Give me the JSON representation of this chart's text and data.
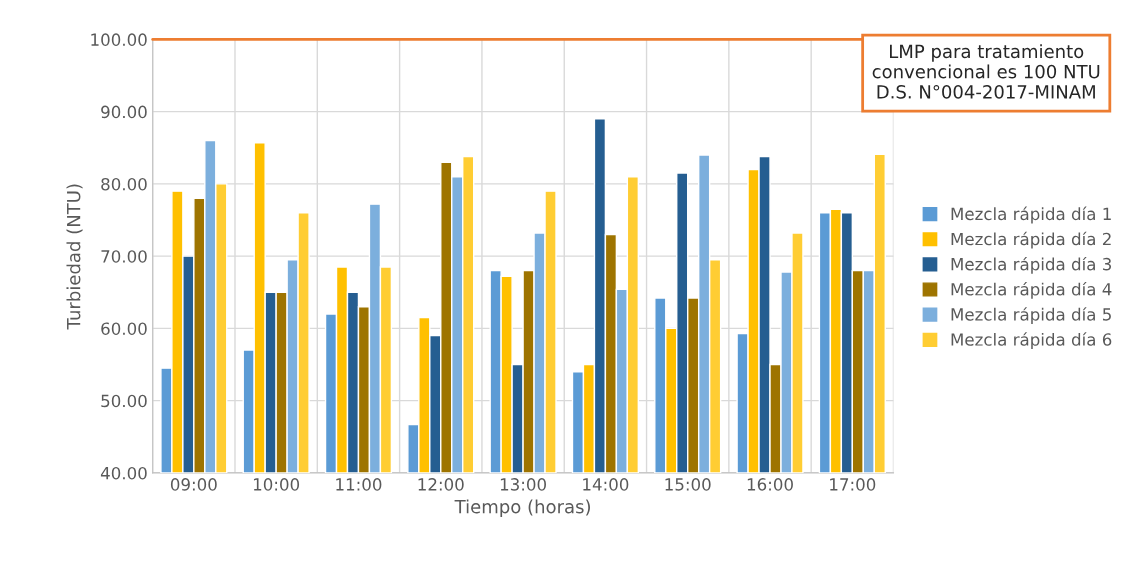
{
  "chart_data": {
    "type": "bar",
    "xlabel": "Tiempo (horas)",
    "ylabel": "Turbiedad (NTU)",
    "categories": [
      "09:00",
      "10:00",
      "11:00",
      "12:00",
      "13:00",
      "14:00",
      "15:00",
      "16:00",
      "17:00"
    ],
    "series": [
      {
        "name": "Mezcla rápida día 1",
        "color": "#5b9bd5",
        "values": [
          54.5,
          57,
          62,
          46.7,
          68,
          54,
          64.2,
          59.3,
          76
        ]
      },
      {
        "name": "Mezcla rápida día 2",
        "color": "#ffc000",
        "values": [
          79,
          85.7,
          68.5,
          61.5,
          67.2,
          55,
          60,
          82,
          76.5
        ]
      },
      {
        "name": "Mezcla rápida día 3",
        "color": "#255e91",
        "values": [
          70,
          65,
          65,
          59,
          55,
          89,
          81.5,
          83.8,
          76
        ]
      },
      {
        "name": "Mezcla rápida día 4",
        "color": "#9e7400",
        "values": [
          78,
          65,
          63,
          83,
          68,
          73,
          64.2,
          55,
          68
        ]
      },
      {
        "name": "Mezcla rápida día 5",
        "color": "#7cafdd",
        "values": [
          86,
          69.5,
          77.2,
          81,
          73.2,
          65.4,
          84,
          67.8,
          68
        ]
      },
      {
        "name": "Mezcla rápida día 6",
        "color": "#ffcd33",
        "values": [
          80,
          76,
          68.5,
          83.8,
          79,
          81,
          69.5,
          73.2,
          84.1
        ]
      }
    ],
    "ylim": [
      40,
      100
    ],
    "yticks": [
      {
        "value": 40,
        "label": "40.00"
      },
      {
        "value": 50,
        "label": "50.00"
      },
      {
        "value": 60,
        "label": "60.00"
      },
      {
        "value": 70,
        "label": "70.00"
      },
      {
        "value": 80,
        "label": "80.00"
      },
      {
        "value": 90,
        "label": "90.00"
      },
      {
        "value": 100,
        "label": "100.00"
      }
    ],
    "ref_lines": [
      {
        "axis": "y",
        "value": 100,
        "label": "LMP para tratamiento\nconvencional es 100 NTU\nD.S. N°004-2017-MINAM",
        "color": "#ed7d31"
      }
    ],
    "grid": true,
    "legend": "right"
  }
}
